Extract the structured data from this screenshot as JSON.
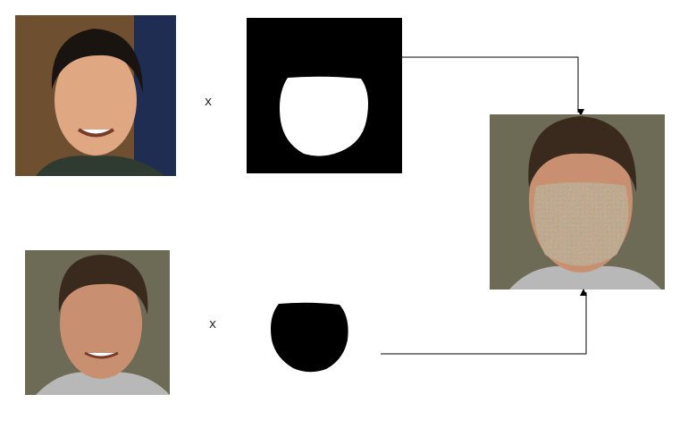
{
  "rows": [
    {
      "operator": "x"
    },
    {
      "operator": "x"
    }
  ]
}
